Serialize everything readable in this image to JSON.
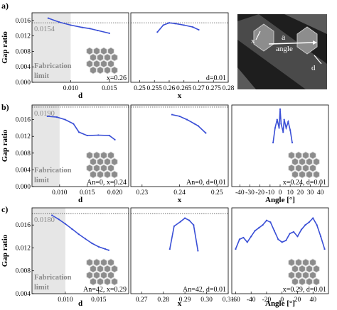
{
  "colors": {
    "curve": "#3a4fd6",
    "fab": "#e6e6e6",
    "axis": "#000000",
    "ref": "#555555",
    "label": "#8a8a8a"
  },
  "common": {
    "ylabel": "Gap ratio",
    "fab_label": [
      "Fabrication",
      "limit"
    ]
  },
  "inset": {
    "label_a": "a",
    "label_x": "x",
    "label_angle": "angle",
    "label_d": "d"
  },
  "chart_data": [
    {
      "row": "a)",
      "col": 0,
      "type": "line",
      "xlabel": "d",
      "xlim": [
        0.005,
        0.0175
      ],
      "ylim": [
        0.0,
        0.018
      ],
      "xticks": [
        0.01,
        0.015
      ],
      "xtick_labels": [
        "0.010",
        "0.015"
      ],
      "yticks": [
        0.0,
        0.004,
        0.008,
        0.012,
        0.016
      ],
      "ytick_labels": [
        "0.000",
        "0.004",
        "0.008",
        "0.012",
        "0.016"
      ],
      "ref_line": 0.0154,
      "ref_label": "0.0154",
      "fab_limit": 0.01,
      "annotation": "x=0.26",
      "x": [
        0.0071,
        0.0085,
        0.01,
        0.0115,
        0.0125,
        0.0135,
        0.015
      ],
      "y": [
        0.0166,
        0.0156,
        0.0148,
        0.0142,
        0.0139,
        0.0134,
        0.0127
      ]
    },
    {
      "row": "a)",
      "col": 1,
      "type": "line",
      "xlabel": "x",
      "xlim": [
        0.247,
        0.28
      ],
      "ylim": [
        0.0,
        0.018
      ],
      "xticks": [
        0.25,
        0.255,
        0.26,
        0.265,
        0.27,
        0.275,
        0.28
      ],
      "xtick_labels": [
        "0.25",
        "0.255",
        "0.26",
        "0.265",
        "0.27",
        "0.275",
        "0.28"
      ],
      "ref_line": 0.0154,
      "annotation": "d=0.01",
      "x": [
        0.256,
        0.258,
        0.26,
        0.262,
        0.265,
        0.268,
        0.27
      ],
      "y": [
        0.013,
        0.0148,
        0.0154,
        0.0152,
        0.0148,
        0.0143,
        0.0136
      ]
    },
    {
      "row": "b)",
      "col": 0,
      "type": "line",
      "xlabel": "d",
      "xlim": [
        0.005,
        0.0225
      ],
      "ylim": [
        0.0,
        0.0195
      ],
      "xticks": [
        0.01,
        0.015,
        0.02
      ],
      "xtick_labels": [
        "0.010",
        "0.015",
        "0.020"
      ],
      "yticks": [
        0.0,
        0.004,
        0.008,
        0.012,
        0.016
      ],
      "ytick_labels": [
        "0.000",
        "0.004",
        "0.008",
        "0.012",
        "0.016"
      ],
      "ref_line": 0.019,
      "ref_label": "0.0190",
      "fab_limit": 0.01,
      "annotation": "An=0, x=0.24",
      "x": [
        0.0078,
        0.0095,
        0.011,
        0.0125,
        0.0135,
        0.015,
        0.017,
        0.019,
        0.02
      ],
      "y": [
        0.0168,
        0.0166,
        0.016,
        0.015,
        0.013,
        0.0122,
        0.0123,
        0.0122,
        0.0112
      ]
    },
    {
      "row": "b)",
      "col": 1,
      "type": "line",
      "xlabel": "x",
      "xlim": [
        0.227,
        0.253
      ],
      "xticks": [
        0.23,
        0.24,
        0.25
      ],
      "xtick_labels": [
        "0.23",
        "0.24",
        "0.25"
      ],
      "ylim": [
        0.0,
        0.0195
      ],
      "ref_line": 0.019,
      "annotation": "An=0, d=0.01",
      "x": [
        0.238,
        0.24,
        0.242,
        0.244,
        0.245,
        0.247
      ],
      "y": [
        0.0172,
        0.0168,
        0.016,
        0.015,
        0.0145,
        0.0128
      ]
    },
    {
      "row": "b)",
      "col": 2,
      "type": "line",
      "xlabel": "Angle [°]",
      "xlim": [
        -48,
        48
      ],
      "ylim": [
        0.0,
        0.0195
      ],
      "xticks": [
        -40,
        -30,
        -20,
        -10,
        0,
        10,
        20,
        30,
        40
      ],
      "xtick_labels": [
        "-40",
        "-30",
        "-20",
        "-10",
        "0",
        "10",
        "20",
        "30",
        "40"
      ],
      "annotation": "x=0.24, d=0.01",
      "x": [
        -7,
        -5,
        -3,
        -1,
        0,
        1,
        3,
        4,
        6,
        8,
        10,
        12
      ],
      "y": [
        0.0105,
        0.014,
        0.016,
        0.014,
        0.0185,
        0.015,
        0.013,
        0.016,
        0.014,
        0.0155,
        0.0135,
        0.0105
      ]
    },
    {
      "row": "c)",
      "col": 0,
      "type": "line",
      "xlabel": "d",
      "xlim": [
        0.005,
        0.0195
      ],
      "ylim": [
        0.004,
        0.019
      ],
      "xticks": [
        0.01,
        0.015
      ],
      "xtick_labels": [
        "0.010",
        "0.015"
      ],
      "yticks": [
        0.004,
        0.008,
        0.012,
        0.016
      ],
      "ytick_labels": [
        "0.004",
        "0.008",
        "0.012",
        "0.016"
      ],
      "ref_line": 0.018,
      "ref_label": "0.0180",
      "fab_limit": 0.01,
      "annotation": "An=42, x=0.29",
      "x": [
        0.008,
        0.009,
        0.01,
        0.011,
        0.012,
        0.013,
        0.014,
        0.015,
        0.016,
        0.0165
      ],
      "y": [
        0.0177,
        0.017,
        0.0162,
        0.0153,
        0.0144,
        0.0136,
        0.0128,
        0.0122,
        0.0118,
        0.0116
      ]
    },
    {
      "row": "c)",
      "col": 1,
      "type": "line",
      "xlabel": "x",
      "xlim": [
        0.265,
        0.31
      ],
      "ylim": [
        0.004,
        0.019
      ],
      "xticks": [
        0.27,
        0.28,
        0.29,
        0.3,
        0.31
      ],
      "xtick_labels": [
        "0.27",
        "0.28",
        "0.29",
        "0.30",
        "0.31"
      ],
      "ref_line": 0.018,
      "annotation": "An=42, d=0.01",
      "x": [
        0.283,
        0.285,
        0.288,
        0.29,
        0.292,
        0.294,
        0.296
      ],
      "y": [
        0.0118,
        0.0158,
        0.0166,
        0.0172,
        0.0168,
        0.016,
        0.0115
      ]
    },
    {
      "row": "c)",
      "col": 2,
      "type": "line",
      "xlabel": "Angle [°]",
      "xlim": [
        -65,
        60
      ],
      "ylim": [
        0.004,
        0.019
      ],
      "xticks": [
        -60,
        -40,
        -20,
        0,
        20,
        40
      ],
      "xtick_labels": [
        "-60",
        "-40",
        "-20",
        "0",
        "20",
        "40"
      ],
      "annotation": "x=0.29, d=0.01",
      "x": [
        -60,
        -55,
        -50,
        -45,
        -40,
        -35,
        -30,
        -25,
        -20,
        -15,
        -10,
        -5,
        0,
        5,
        10,
        15,
        20,
        25,
        30,
        35,
        40,
        45,
        50,
        55
      ],
      "y": [
        0.0118,
        0.0135,
        0.0138,
        0.013,
        0.014,
        0.015,
        0.0155,
        0.016,
        0.0168,
        0.0165,
        0.015,
        0.0135,
        0.013,
        0.0133,
        0.0145,
        0.0148,
        0.014,
        0.0152,
        0.016,
        0.0165,
        0.0172,
        0.016,
        0.014,
        0.0118
      ]
    }
  ]
}
